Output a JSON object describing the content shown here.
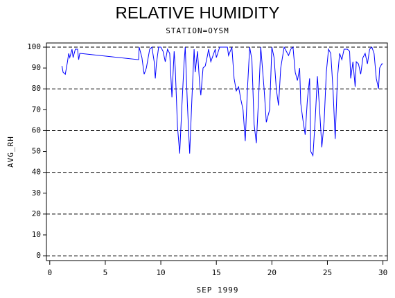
{
  "chart_data": {
    "type": "line",
    "title": "RELATIVE HUMIDITY",
    "subtitle": "STATION=OYSM",
    "x_label": "SEP 1999",
    "y_label": "AVG_RH",
    "xlim": [
      -0.3,
      30.4
    ],
    "ylim": [
      -2.3,
      102
    ],
    "xticks": [
      0,
      5,
      10,
      15,
      20,
      25,
      30
    ],
    "yticks": [
      0,
      10,
      20,
      30,
      40,
      50,
      60,
      70,
      80,
      90,
      100
    ],
    "grid_values": [
      0,
      20,
      40,
      60,
      80,
      100
    ],
    "x": [
      1.1,
      1.2,
      1.4,
      1.6,
      1.7,
      1.8,
      2.0,
      2.1,
      2.3,
      2.5,
      2.6,
      2.7,
      2.8,
      8.0,
      8.05,
      8.3,
      8.5,
      8.7,
      9.0,
      9.2,
      9.4,
      9.5,
      9.6,
      9.8,
      10.0,
      10.2,
      10.4,
      10.6,
      10.8,
      11.0,
      11.2,
      11.3,
      11.5,
      11.7,
      11.9,
      12.1,
      12.2,
      12.4,
      12.6,
      12.8,
      13.0,
      13.1,
      13.3,
      13.5,
      13.6,
      13.8,
      14.0,
      14.2,
      14.3,
      14.5,
      14.7,
      14.9,
      15.0,
      15.3,
      15.6,
      16.0,
      16.1,
      16.4,
      16.6,
      16.8,
      17.0,
      17.2,
      17.4,
      17.6,
      17.8,
      18.0,
      18.2,
      18.4,
      18.6,
      18.8,
      19.0,
      19.3,
      19.5,
      19.8,
      20.0,
      20.2,
      20.4,
      20.6,
      20.8,
      21.1,
      21.3,
      21.5,
      21.7,
      21.9,
      22.1,
      22.3,
      22.5,
      22.6,
      22.8,
      23.0,
      23.2,
      23.4,
      23.5,
      23.7,
      23.9,
      24.1,
      24.3,
      24.5,
      24.7,
      24.9,
      25.1,
      25.3,
      25.5,
      25.7,
      25.9,
      26.1,
      26.3,
      26.5,
      26.8,
      27.0,
      27.1,
      27.3,
      27.5,
      27.6,
      27.8,
      28.0,
      28.2,
      28.4,
      28.6,
      28.8,
      29.0,
      29.2,
      29.4,
      29.6,
      29.7,
      29.9,
      30.0
    ],
    "series": [
      {
        "color": "#0000ff",
        "values": [
          91,
          88,
          87,
          93,
          97,
          95,
          99,
          95,
          99,
          99,
          94,
          97,
          97,
          94,
          100,
          95,
          87,
          90,
          99,
          100,
          93,
          85,
          92,
          100,
          100,
          98,
          93,
          99,
          97,
          76,
          98,
          90,
          62,
          49,
          72,
          93,
          100,
          72,
          49,
          75,
          99,
          88,
          98,
          82,
          77,
          90,
          91,
          96,
          99,
          93,
          96,
          99,
          95,
          100,
          100,
          100,
          96,
          100,
          85,
          79,
          81,
          75,
          70,
          55,
          80,
          100,
          94,
          63,
          54,
          75,
          100,
          80,
          64,
          70,
          100,
          95,
          80,
          72,
          90,
          100,
          98,
          96,
          99,
          100,
          88,
          84,
          90,
          73,
          65,
          58,
          75,
          85,
          50,
          48,
          65,
          86,
          70,
          52,
          64,
          88,
          99,
          97,
          80,
          56,
          85,
          97,
          94,
          99,
          99,
          98,
          85,
          93,
          81,
          93,
          92,
          87,
          95,
          97,
          92,
          99,
          100,
          97,
          85,
          80,
          90,
          92,
          92
        ]
      }
    ]
  }
}
